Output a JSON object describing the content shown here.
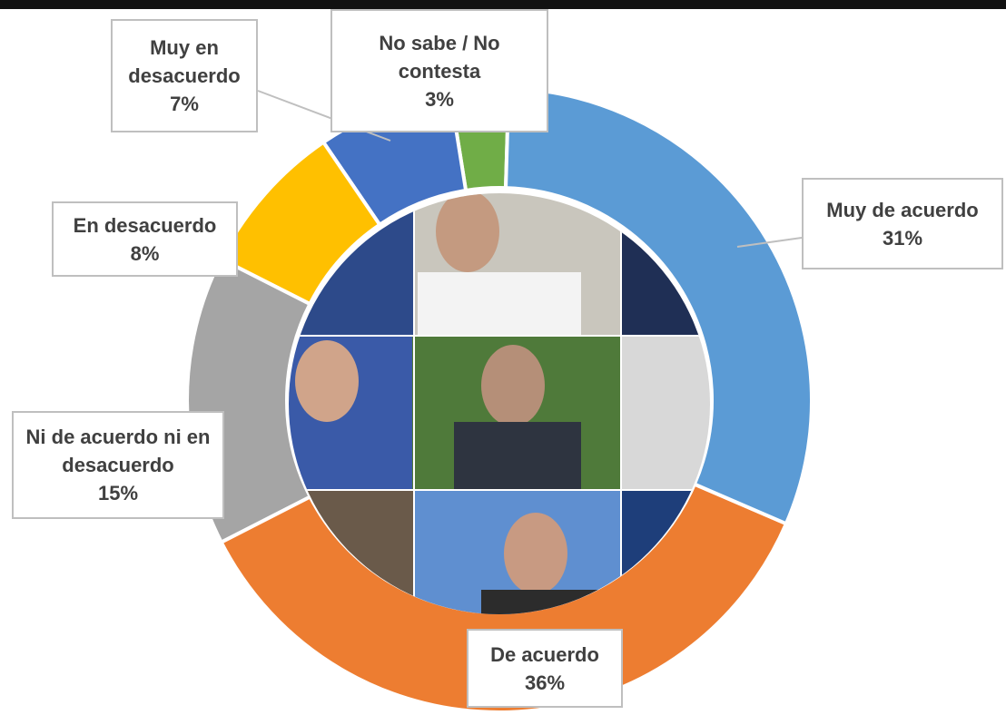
{
  "chart_data": {
    "type": "donut",
    "categories": [
      "Muy de acuerdo",
      "De acuerdo",
      "Ni de acuerdo ni en desacuerdo",
      "En desacuerdo",
      "Muy en desacuerdo",
      "No sabe / No contesta"
    ],
    "values": [
      31,
      36,
      15,
      8,
      7,
      3
    ],
    "value_labels": [
      "31%",
      "36%",
      "15%",
      "8%",
      "7%",
      "3%"
    ],
    "colors": [
      "#5b9bd5",
      "#ed7d31",
      "#a5a5a5",
      "#ffc000",
      "#4472c4",
      "#70ad47"
    ]
  }
}
